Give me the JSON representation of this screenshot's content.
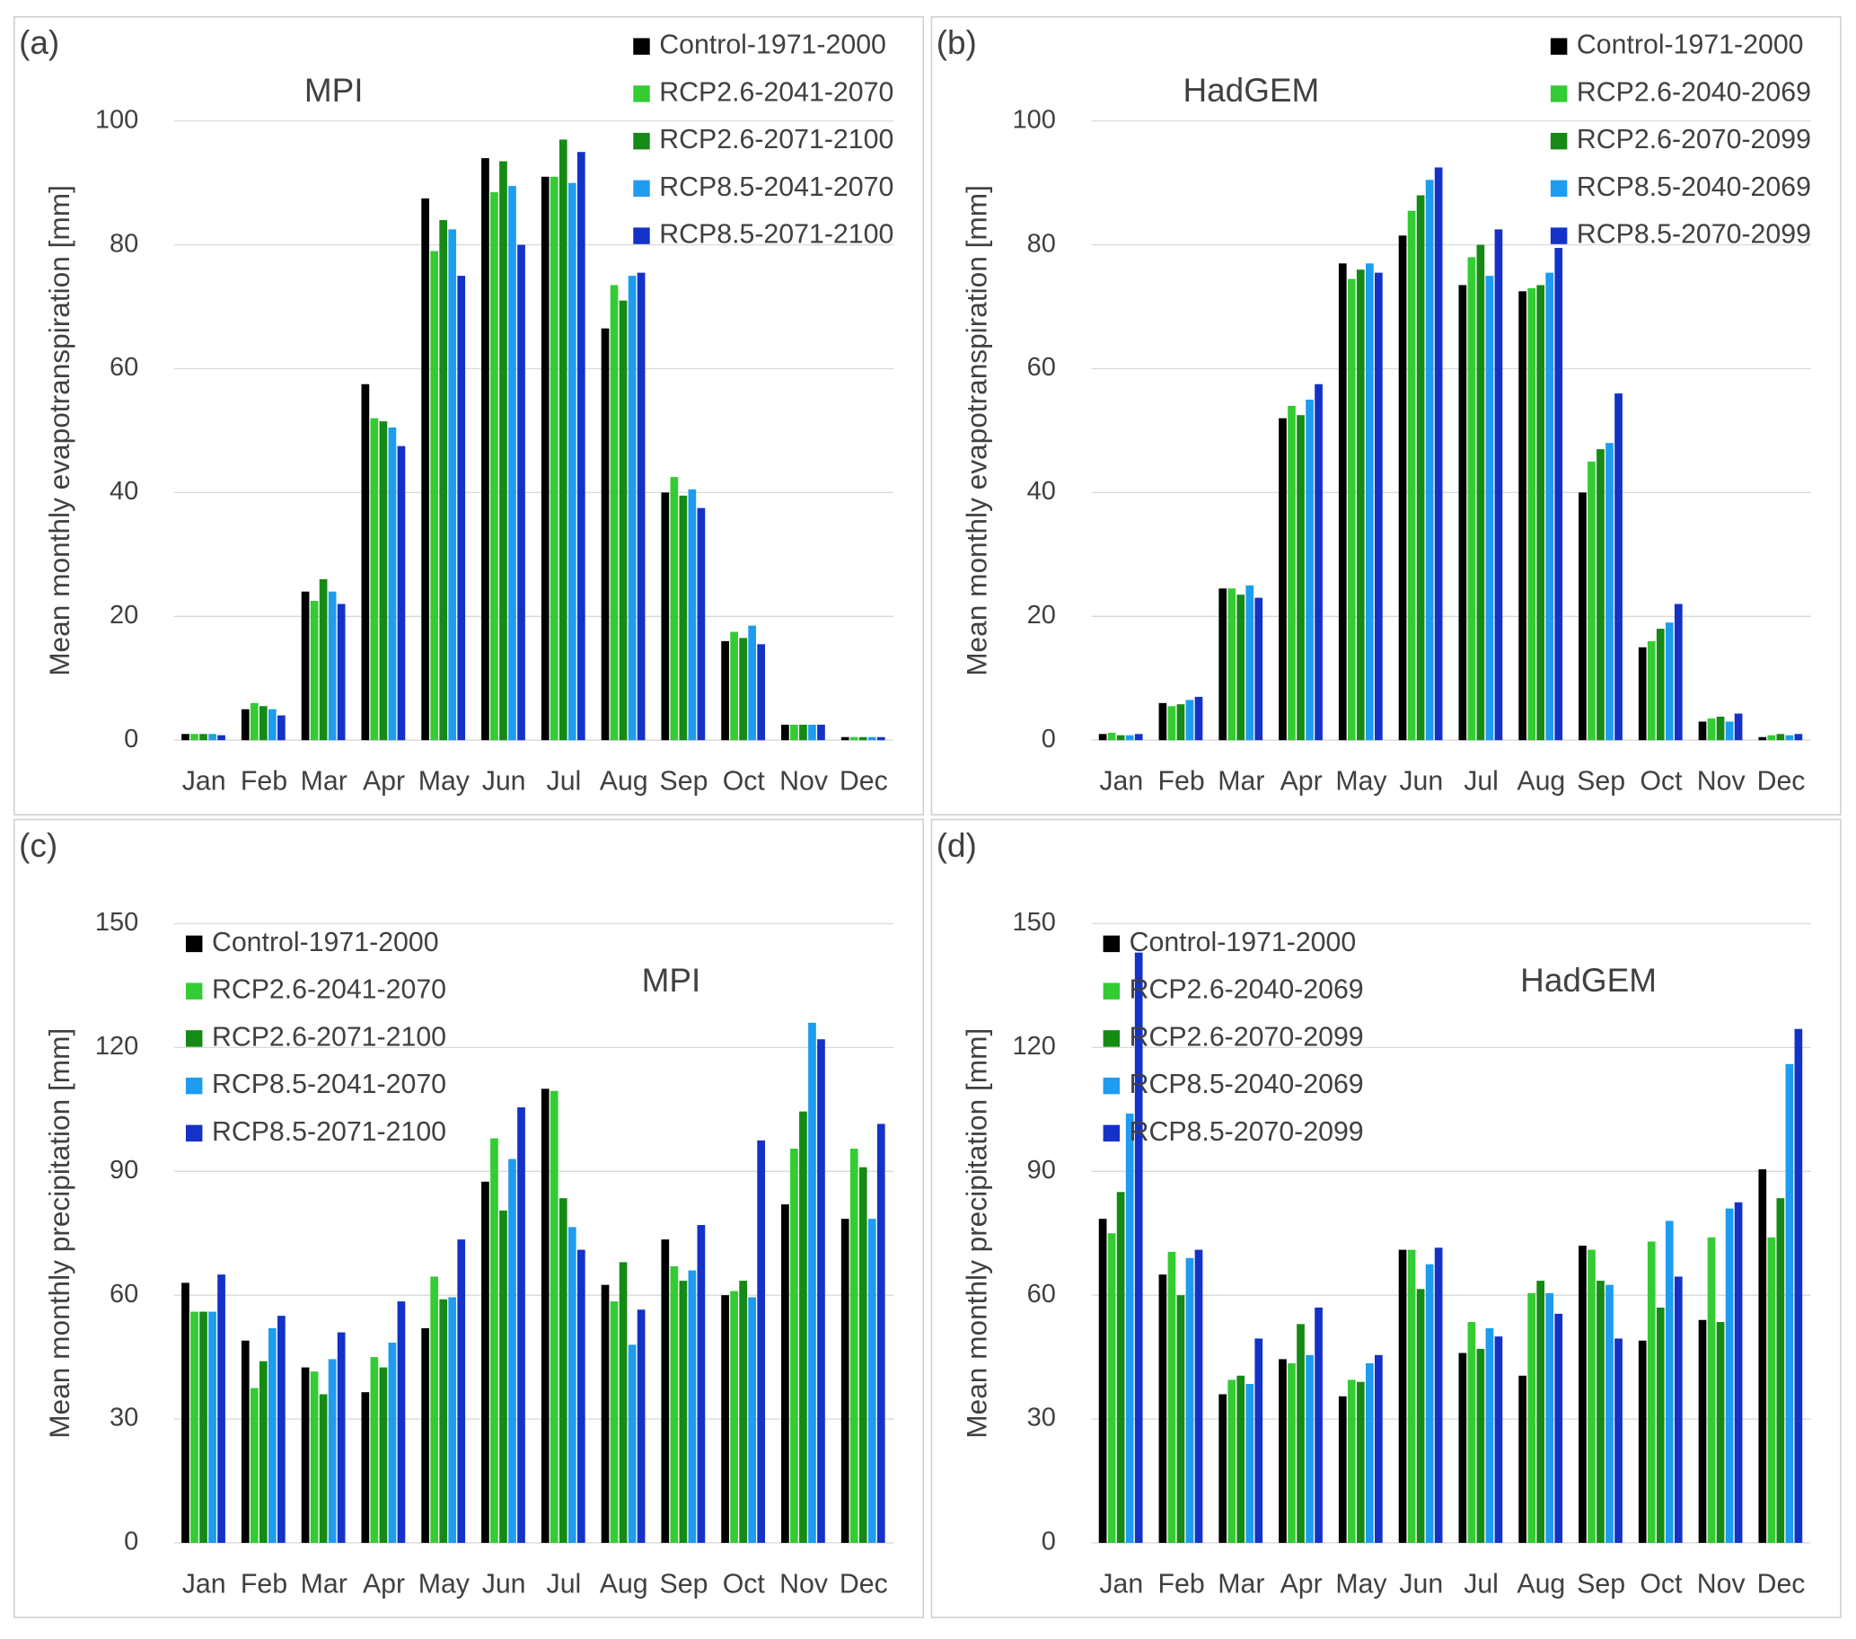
{
  "chart_data": [
    {
      "type": "bar",
      "panel": "(a)",
      "title": "MPI",
      "ylabel": "Mean monthly evapotranspiration [mm]",
      "categories": [
        "Jan",
        "Feb",
        "Mar",
        "Apr",
        "May",
        "Jun",
        "Jul",
        "Aug",
        "Sep",
        "Oct",
        "Nov",
        "Dec"
      ],
      "series": [
        {
          "name": "Control-1971-2000",
          "color": "#000000",
          "values": [
            1,
            5,
            24,
            57.5,
            87.5,
            94,
            91,
            66.5,
            40,
            16,
            2.5,
            0.5
          ]
        },
        {
          "name": "RCP2.6-2041-2070",
          "color": "#33cc33",
          "values": [
            1,
            6,
            22.5,
            52,
            79,
            88.5,
            91,
            73.5,
            42.5,
            17.5,
            2.5,
            0.5
          ]
        },
        {
          "name": "RCP2.6-2071-2100",
          "color": "#158a15",
          "values": [
            1,
            5.5,
            26,
            51.5,
            84,
            93.5,
            97,
            71,
            39.5,
            16.5,
            2.5,
            0.5
          ]
        },
        {
          "name": "RCP8.5-2041-2070",
          "color": "#1e9cf0",
          "values": [
            1,
            5,
            24,
            50.5,
            82.5,
            89.5,
            90,
            75,
            40.5,
            18.5,
            2.5,
            0.5
          ]
        },
        {
          "name": "RCP8.5-2071-2100",
          "color": "#1432c8",
          "values": [
            0.8,
            4,
            22,
            47.5,
            75,
            80,
            95,
            75.5,
            37.5,
            15.5,
            2.5,
            0.5
          ]
        }
      ],
      "ylim": [
        0,
        100
      ],
      "yticks": [
        0,
        20,
        40,
        60,
        80,
        100
      ],
      "grid": true,
      "legend": "upper right"
    },
    {
      "type": "bar",
      "panel": "(b)",
      "title": "HadGEM",
      "ylabel": "Mean monthly evapotranspiration [mm]",
      "categories": [
        "Jan",
        "Feb",
        "Mar",
        "Apr",
        "May",
        "Jun",
        "Jul",
        "Aug",
        "Sep",
        "Oct",
        "Nov",
        "Dec"
      ],
      "series": [
        {
          "name": "Control-1971-2000",
          "color": "#000000",
          "values": [
            1,
            6,
            24.5,
            52,
            77,
            81.5,
            73.5,
            72.5,
            40,
            15,
            3,
            0.5
          ]
        },
        {
          "name": "RCP2.6-2040-2069",
          "color": "#33cc33",
          "values": [
            1.2,
            5.5,
            24.5,
            54,
            74.5,
            85.5,
            78,
            73,
            45,
            16,
            3.5,
            0.8
          ]
        },
        {
          "name": "RCP2.6-2070-2099",
          "color": "#158a15",
          "values": [
            0.8,
            5.8,
            23.5,
            52.5,
            76,
            88,
            80,
            73.5,
            47,
            18,
            3.8,
            1
          ]
        },
        {
          "name": "RCP8.5-2040-2069",
          "color": "#1e9cf0",
          "values": [
            0.8,
            6.5,
            25,
            55,
            77,
            90.5,
            75,
            75.5,
            48,
            19,
            3,
            0.8
          ]
        },
        {
          "name": "RCP8.5-2070-2099",
          "color": "#1432c8",
          "values": [
            1,
            7,
            23,
            57.5,
            75.5,
            92.5,
            82.5,
            79.5,
            56,
            22,
            4.3,
            1
          ]
        }
      ],
      "ylim": [
        0,
        100
      ],
      "yticks": [
        0,
        20,
        40,
        60,
        80,
        100
      ],
      "grid": true,
      "legend": "upper right"
    },
    {
      "type": "bar",
      "panel": "(c)",
      "title": "MPI",
      "ylabel": "Mean monthly precipitation [mm]",
      "categories": [
        "Jan",
        "Feb",
        "Mar",
        "Apr",
        "May",
        "Jun",
        "Jul",
        "Aug",
        "Sep",
        "Oct",
        "Nov",
        "Dec"
      ],
      "series": [
        {
          "name": "Control-1971-2000",
          "color": "#000000",
          "values": [
            63,
            49,
            42.5,
            36.5,
            52,
            87.5,
            110,
            62.5,
            73.5,
            60,
            82,
            78.5
          ]
        },
        {
          "name": "RCP2.6-2041-2070",
          "color": "#33cc33",
          "values": [
            56,
            37.5,
            41.5,
            45,
            64.5,
            98,
            109.5,
            58.5,
            67,
            61,
            95.5,
            95.5
          ]
        },
        {
          "name": "RCP2.6-2071-2100",
          "color": "#158a15",
          "values": [
            56,
            44,
            36,
            42.5,
            59,
            80.5,
            83.5,
            68,
            63.5,
            63.5,
            104.5,
            91
          ]
        },
        {
          "name": "RCP8.5-2041-2070",
          "color": "#1e9cf0",
          "values": [
            56,
            52,
            44.5,
            48.5,
            59.5,
            93,
            76.5,
            48,
            66,
            59.5,
            126,
            78.5
          ]
        },
        {
          "name": "RCP8.5-2071-2100",
          "color": "#1432c8",
          "values": [
            65,
            55,
            51,
            58.5,
            73.5,
            105.5,
            71,
            56.5,
            77,
            97.5,
            122,
            101.5
          ]
        }
      ],
      "ylim": [
        0,
        150
      ],
      "yticks": [
        0,
        30,
        60,
        90,
        120,
        150
      ],
      "grid": true,
      "legend": "upper left"
    },
    {
      "type": "bar",
      "panel": "(d)",
      "title": "HadGEM",
      "ylabel": "Mean monthly precipitation [mm]",
      "categories": [
        "Jan",
        "Feb",
        "Mar",
        "Apr",
        "May",
        "Jun",
        "Jul",
        "Aug",
        "Sep",
        "Oct",
        "Nov",
        "Dec"
      ],
      "series": [
        {
          "name": "Control-1971-2000",
          "color": "#000000",
          "values": [
            78.5,
            65,
            36,
            44.5,
            35.5,
            71,
            46,
            40.5,
            72,
            49,
            54,
            90.5
          ]
        },
        {
          "name": "RCP2.6-2040-2069",
          "color": "#33cc33",
          "values": [
            75,
            70.5,
            39.5,
            43.5,
            39.5,
            71,
            53.5,
            60.5,
            71,
            73,
            74,
            74
          ]
        },
        {
          "name": "RCP2.6-2070-2099",
          "color": "#158a15",
          "values": [
            85,
            60,
            40.5,
            53,
            39,
            61.5,
            47,
            63.5,
            63.5,
            57,
            53.5,
            83.5
          ]
        },
        {
          "name": "RCP8.5-2040-2069",
          "color": "#1e9cf0",
          "values": [
            104,
            69,
            38.5,
            45.5,
            43.5,
            67.5,
            52,
            60.5,
            62.5,
            78,
            81,
            116
          ]
        },
        {
          "name": "RCP8.5-2070-2099",
          "color": "#1432c8",
          "values": [
            143,
            71,
            49.5,
            57,
            45.5,
            71.5,
            50,
            55.5,
            49.5,
            64.5,
            82.5,
            124.5
          ]
        }
      ],
      "ylim": [
        0,
        150
      ],
      "yticks": [
        0,
        30,
        60,
        90,
        120,
        150
      ],
      "grid": true,
      "legend": "upper left"
    }
  ]
}
